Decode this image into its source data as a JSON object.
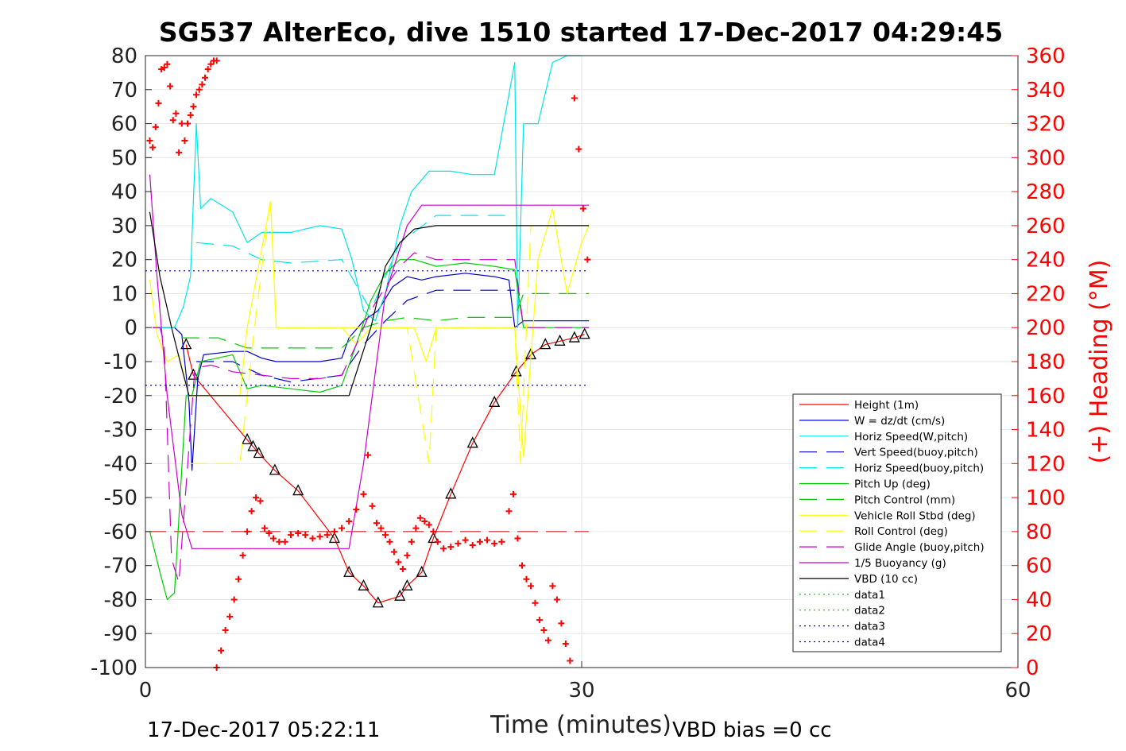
{
  "chart_data": {
    "type": "line",
    "title": "SG537 AlterEco, dive 1510 started 17-Dec-2017 04:29:45",
    "xlabel": "Time (minutes)",
    "ylabel": "",
    "y2label": "(+) Heading (°M)",
    "xlim": [
      0,
      60
    ],
    "ylim": [
      -100,
      80
    ],
    "y2lim": [
      0,
      360
    ],
    "xticks": [
      "0",
      "30",
      "60"
    ],
    "yticks": [
      "80",
      "70",
      "60",
      "50",
      "40",
      "30",
      "20",
      "10",
      "0",
      "-10",
      "-20",
      "-30",
      "-40",
      "-50",
      "-60",
      "-70",
      "-80",
      "-90",
      "-100"
    ],
    "y2ticks": [
      "360",
      "340",
      "320",
      "300",
      "280",
      "260",
      "240",
      "220",
      "200",
      "180",
      "160",
      "140",
      "120",
      "100",
      "80",
      "60",
      "40",
      "20",
      "0"
    ],
    "grid": true,
    "legend_position": "bottom-right",
    "footer_left": "17-Dec-2017 05:22:11",
    "footer_right": "VBD bias =0 cc",
    "colors": {
      "height": "#ff0000",
      "w": "#0000cc",
      "horiz": "#00e5e5",
      "pitch": "#00cc00",
      "roll": "#ffff00",
      "glide": "#cc00cc",
      "buoy": "#cc00cc",
      "vbd": "#000000",
      "heading": "#ff0000"
    },
    "series": [
      {
        "name": "Height (1m)",
        "color": "#ff0000",
        "style": "solid",
        "marker": "triangle",
        "x": [
          2.8,
          3.3,
          7.0,
          7.4,
          7.8,
          8.9,
          10.5,
          13.0,
          14.0,
          15.0,
          16.0,
          17.5,
          18.0,
          19.0,
          19.8,
          21.0,
          22.5,
          24.0,
          25.5,
          26.5,
          27.5,
          28.5,
          29.5,
          30.2
        ],
        "y": [
          -5,
          -14,
          -33,
          -35,
          -37,
          -42,
          -48,
          -62,
          -72,
          -76,
          -81,
          -79,
          -76,
          -72,
          -62,
          -49,
          -34,
          -22,
          -13,
          -8,
          -5,
          -4,
          -3,
          -2
        ]
      },
      {
        "name": "W = dz/dt (cm/s)",
        "color": "#0000cc",
        "style": "solid",
        "x": [
          0.5,
          1.5,
          2.0,
          2.5,
          3.0,
          3.2,
          3.6,
          4.0,
          6.0,
          7.0,
          8.0,
          9.0,
          10.0,
          11.0,
          12.0,
          13.5,
          14.0,
          15.0,
          16.0,
          17.0,
          18.0,
          19.0,
          20.0,
          22.0,
          24.0,
          25.0,
          25.4,
          26.0,
          28.0,
          30.5
        ],
        "y": [
          0,
          0,
          0,
          -2,
          -22,
          -42,
          -15,
          -8,
          -7,
          -7,
          -9,
          -10,
          -10,
          -10,
          -10,
          -9,
          -3,
          2,
          5,
          12,
          15,
          14,
          15,
          16,
          15,
          14,
          0,
          2,
          2,
          2
        ]
      },
      {
        "name": "Horiz Speed(W,pitch)",
        "color": "#00e5e5",
        "style": "solid",
        "x": [
          1.0,
          2.0,
          2.6,
          3.1,
          3.5,
          3.8,
          4.5,
          6.0,
          7.0,
          8.0,
          10.0,
          12.0,
          13.5,
          14.2,
          15.0,
          15.8,
          16.5,
          17.5,
          18.3,
          19.5,
          21.0,
          22.5,
          24.0,
          25.4,
          25.6,
          26.0,
          27.0,
          28.0,
          29.0,
          30.0
        ],
        "y": [
          0,
          0,
          6,
          15,
          60,
          35,
          38,
          34,
          25,
          28,
          28,
          30,
          29,
          20,
          5,
          2,
          10,
          30,
          40,
          46,
          46,
          45,
          45,
          78,
          0,
          60,
          60,
          78,
          80,
          80
        ]
      },
      {
        "name": "Vert Speed(buoy,pitch)",
        "color": "#0000cc",
        "style": "dash",
        "x": [
          3.5,
          6.0,
          8.0,
          10.0,
          13.5,
          15.0,
          16.5,
          18.0,
          20.0,
          22.0,
          24.0,
          25.4
        ],
        "y": [
          -10,
          -10,
          -14,
          -16,
          -14,
          -5,
          2,
          8,
          11,
          11,
          11,
          11
        ]
      },
      {
        "name": "Horiz Speed(buoy,pitch)",
        "color": "#00e5e5",
        "style": "dash",
        "x": [
          3.5,
          6.0,
          8.0,
          10.0,
          13.5,
          15.5,
          17.5,
          20.0,
          22.0,
          24.0,
          25.4
        ],
        "y": [
          25,
          24,
          20,
          19,
          20,
          5,
          25,
          33,
          33,
          33,
          33
        ]
      },
      {
        "name": "Pitch Up (deg)",
        "color": "#00cc00",
        "style": "solid",
        "x": [
          0.3,
          1.0,
          1.5,
          2.0,
          2.8,
          3.2,
          3.8,
          6.0,
          7.0,
          8.0,
          10.0,
          12.0,
          13.5,
          14.5,
          15.5,
          16.5,
          17.5,
          18.5,
          20.0,
          22.0,
          24.0,
          25.4,
          26.0,
          28.0,
          30.5
        ],
        "y": [
          -60,
          -72,
          -80,
          -78,
          -20,
          -20,
          -10,
          -8,
          -18,
          -17,
          -18,
          -19,
          -17,
          -5,
          8,
          16,
          20,
          20,
          18,
          19,
          18,
          17,
          0,
          0,
          0
        ]
      },
      {
        "name": "Pitch Control (mm)",
        "color": "#00cc00",
        "style": "dash",
        "x": [
          2.5,
          3.0,
          5.0,
          7.0,
          9.0,
          11.0,
          13.5,
          15.0,
          16.5,
          18.0,
          20.0,
          22.0,
          24.0,
          25.4,
          26.0,
          28.0,
          30.5
        ],
        "y": [
          -3,
          -3,
          -3,
          -6,
          -6,
          -6,
          -6,
          0,
          2,
          3,
          2,
          3,
          3,
          3,
          10,
          10,
          10
        ]
      },
      {
        "name": "Vehicle Roll Stbd (deg)",
        "color": "#ffff00",
        "style": "solid",
        "x": [
          0.3,
          0.8,
          1.5,
          2.3,
          3.0,
          4.5,
          6.5,
          7.0,
          8.6,
          9.0,
          10.0,
          12.0,
          13.5,
          14.5,
          15.5,
          17.5,
          18.5,
          19.3,
          20.0,
          22.0,
          24.0,
          25.4,
          26.0,
          27.0,
          28.0,
          29.0,
          30.0,
          30.5
        ],
        "y": [
          14,
          -2,
          -10,
          -8,
          -20,
          -20,
          -20,
          0,
          37,
          0,
          0,
          0,
          0,
          -5,
          0,
          0,
          0,
          -10,
          0,
          0,
          0,
          0,
          -38,
          20,
          35,
          10,
          25,
          30
        ]
      },
      {
        "name": "Roll Control (deg)",
        "color": "#ffff00",
        "style": "dash",
        "x": [
          3.0,
          5.0,
          6.5,
          7.5,
          8.6,
          9.0,
          12.0,
          15.0,
          18.0,
          19.5,
          20.0,
          22.0,
          25.4,
          25.8,
          26.5,
          27.5,
          30.5
        ],
        "y": [
          -40,
          -40,
          -40,
          0,
          38,
          0,
          0,
          0,
          0,
          -40,
          0,
          0,
          0,
          -40,
          30,
          30,
          30
        ]
      },
      {
        "name": "Glide Angle (buoy,pitch)",
        "color": "#cc00cc",
        "style": "dash",
        "x": [
          0.5,
          1.0,
          1.3,
          1.8,
          2.3,
          3.0,
          3.4,
          4.5,
          6.0,
          8.0,
          10.0,
          12.0,
          13.5,
          14.5,
          15.5,
          16.5,
          17.5,
          18.5,
          20.0,
          22.0,
          24.0,
          25.4,
          26.0,
          28.0,
          30.5
        ],
        "y": [
          0,
          0,
          -5,
          -68,
          -75,
          -35,
          -12,
          -11,
          -13,
          -14,
          -15,
          -15,
          -14,
          -5,
          5,
          12,
          18,
          22,
          20,
          20,
          20,
          20,
          0,
          0,
          0
        ]
      },
      {
        "name": "1/5 Buoyancy (g)",
        "color": "#cc00cc",
        "style": "solid",
        "x": [
          0.3,
          0.8,
          1.5,
          2.5,
          3.2,
          4.0,
          8.0,
          12.0,
          14.0,
          15.0,
          16.5,
          18.0,
          19.0,
          25.0,
          30.5
        ],
        "y": [
          45,
          15,
          -20,
          -55,
          -65,
          -65,
          -65,
          -65,
          -65,
          -40,
          10,
          30,
          36,
          36,
          36
        ]
      },
      {
        "name": "VBD (10 cc)",
        "color": "#000000",
        "style": "solid",
        "x": [
          0.3,
          1.0,
          1.8,
          2.5,
          3.0,
          6.0,
          10.0,
          13.0,
          14.0,
          15.5,
          16.5,
          17.5,
          18.5,
          20.0,
          25.0,
          30.5
        ],
        "y": [
          34,
          15,
          0,
          -12,
          -20,
          -20,
          -20,
          -20,
          -20,
          0,
          18,
          25,
          29,
          30,
          30,
          30
        ]
      },
      {
        "name": "data1",
        "color": "#00cc00",
        "style": "dot",
        "x": [],
        "y": []
      },
      {
        "name": "data2",
        "color": "#00cc00",
        "style": "dot",
        "x": [],
        "y": []
      },
      {
        "name": "data3",
        "color": "#0000cc",
        "style": "dot",
        "x": [
          0,
          30.5
        ],
        "y": [
          16.7,
          16.7
        ]
      },
      {
        "name": "data4",
        "color": "#0000cc",
        "style": "dot",
        "x": [
          0,
          30.5
        ],
        "y": [
          -17,
          -17
        ]
      }
    ],
    "reference_lines": [
      {
        "color": "#cc0000",
        "style": "longdash",
        "y2": 80,
        "x": [
          0,
          30.5
        ]
      }
    ],
    "heading": {
      "axis": "right",
      "color": "#ff0000",
      "marker": "plus",
      "x": [
        0.3,
        0.5,
        0.7,
        0.9,
        1.1,
        1.3,
        1.5,
        1.7,
        1.9,
        2.1,
        2.3,
        2.5,
        2.7,
        2.9,
        3.1,
        3.3,
        3.5,
        3.7,
        3.9,
        4.1,
        4.3,
        4.5,
        4.7,
        4.9,
        4.9,
        5.2,
        5.5,
        5.8,
        6.1,
        6.4,
        6.7,
        7.0,
        7.3,
        7.6,
        7.9,
        8.2,
        8.5,
        8.8,
        9.2,
        9.6,
        10.0,
        10.5,
        11.0,
        11.5,
        12.0,
        12.5,
        13.0,
        13.5,
        14.0,
        14.5,
        15.0,
        15.3,
        15.6,
        15.9,
        16.2,
        16.5,
        16.8,
        17.1,
        17.4,
        17.7,
        18.0,
        18.3,
        18.6,
        18.9,
        19.2,
        19.5,
        19.8,
        20.1,
        20.5,
        21.0,
        21.5,
        22.0,
        22.5,
        23.0,
        23.5,
        24.0,
        24.5,
        25.0,
        25.3,
        25.6,
        25.9,
        26.2,
        26.5,
        26.8,
        27.1,
        27.4,
        27.7,
        28.0,
        28.3,
        28.6,
        28.9,
        29.2,
        29.5,
        29.8,
        30.1,
        30.4
      ],
      "y": [
        310,
        306,
        318,
        332,
        352,
        353,
        355,
        342,
        322,
        326,
        303,
        320,
        310,
        320,
        325,
        330,
        337,
        340,
        343,
        347,
        352,
        355,
        357,
        357,
        0,
        10,
        22,
        30,
        40,
        52,
        66,
        80,
        92,
        100,
        98,
        82,
        79,
        76,
        74,
        74,
        78,
        79,
        78,
        76,
        77,
        78,
        80,
        82,
        86,
        93,
        102,
        125,
        95,
        85,
        82,
        78,
        74,
        68,
        62,
        58,
        66,
        74,
        82,
        88,
        86,
        84,
        80,
        74,
        70,
        71,
        73,
        75,
        72,
        74,
        75,
        73,
        74,
        92,
        102,
        76,
        60,
        52,
        48,
        38,
        28,
        22,
        16,
        48,
        40,
        26,
        14,
        4,
        335,
        305,
        270,
        240
      ]
    }
  }
}
